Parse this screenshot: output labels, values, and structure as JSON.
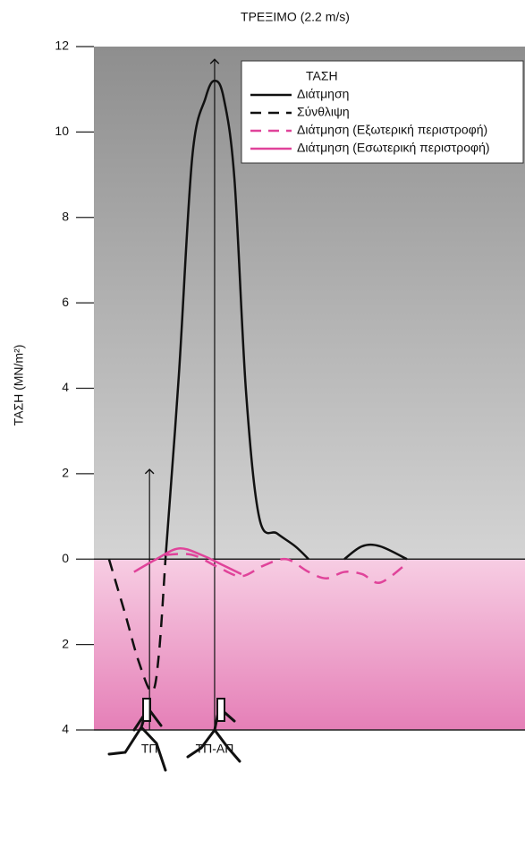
{
  "chart_data": {
    "type": "line",
    "title": "ΤΡΕΞΙΜΟ (2.2 m/s)",
    "y_label": "ΤΑΣΗ (MN/m²)",
    "legend_title": "ΤΑΣΗ",
    "legend": "upper right",
    "xlim": [
      0,
      100
    ],
    "ylim": [
      -4,
      12
    ],
    "yticks": [
      {
        "value": -4,
        "label": "4"
      },
      {
        "value": -2,
        "label": "2"
      },
      0,
      2,
      4,
      6,
      8,
      10,
      12
    ],
    "series": [
      {
        "name": "Διάτμηση",
        "color": "#111111",
        "dash": false,
        "x": [
          16.6,
          19.7,
          22.8,
          25.9,
          28.0,
          30.1,
          32.6,
          35.3,
          38.4,
          42.5,
          46.7,
          49.8,
          null,
          58.1,
          62.2,
          66.4,
          72.6
        ],
        "values": [
          0,
          4.3,
          9.4,
          10.8,
          11.2,
          10.8,
          8.9,
          3.9,
          0.95,
          0.6,
          0.3,
          0,
          null,
          0,
          0.3,
          0.3,
          0
        ]
      },
      {
        "name": "Σύνθλιψη",
        "color": "#111111",
        "dash": true,
        "x": [
          3.5,
          7.3,
          10.4,
          13.5,
          15.1,
          16.6
        ],
        "values": [
          0,
          -1.3,
          -2.4,
          -3.1,
          -2.2,
          0
        ]
      },
      {
        "name": "Διάτμηση (Εξωτερική περιστροφή)",
        "color": "#e0439a",
        "dash": true,
        "x": [
          16.6,
          22.8,
          29.0,
          34.2,
          39.4,
          44.6,
          49.8,
          53.9,
          58.1,
          62.2,
          66.4,
          72.6
        ],
        "values": [
          0.1,
          0.1,
          -0.2,
          -0.4,
          -0.15,
          0,
          -0.3,
          -0.45,
          -0.3,
          -0.35,
          -0.55,
          -0.1
        ]
      },
      {
        "name": "Διάτμηση (Εσωτερική περιστροφή)",
        "color": "#e0439a",
        "dash": false,
        "x": [
          9.3,
          14.5,
          19.7,
          24.9,
          30.1,
          34.2
        ],
        "values": [
          -0.3,
          0,
          0.25,
          0.1,
          -0.15,
          -0.35
        ]
      }
    ],
    "annotations": [
      {
        "label": "ΤΠ",
        "x": 12.9,
        "y": 2.1
      },
      {
        "label": "ΤΠ-ΑΠ",
        "x": 28.0,
        "y": 11.7
      }
    ]
  }
}
